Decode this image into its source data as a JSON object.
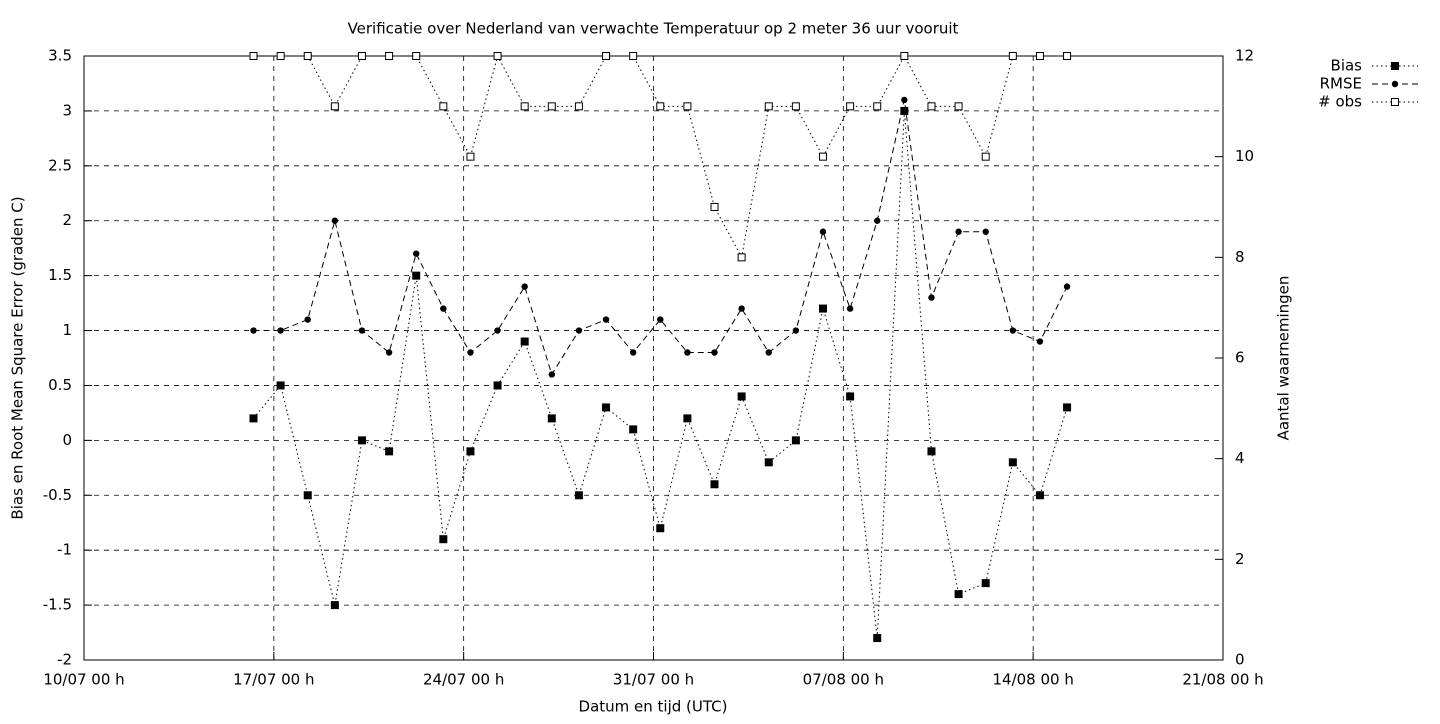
{
  "chart_data": {
    "type": "line",
    "title": "Verificatie over Nederland van verwachte Temperatuur op 2 meter 36 uur vooruit",
    "xlabel": "Datum en tijd (UTC)",
    "ylabel": "Bias en Root Mean Square Error (graden C)",
    "y2label": "Aantal waarnemingen",
    "x": [
      6.25,
      7.25,
      8.25,
      9.25,
      10.25,
      11.25,
      12.25,
      13.25,
      14.25,
      15.25,
      16.25,
      17.25,
      18.25,
      19.25,
      20.25,
      21.25,
      22.25,
      23.25,
      24.25,
      25.25,
      26.25,
      27.25,
      28.25,
      29.25,
      30.25,
      31.25,
      32.25,
      33.25,
      34.25,
      35.25,
      36.25
    ],
    "xlim": [
      0,
      42
    ],
    "xticks": [
      {
        "value": 0,
        "label": "10/07 00 h"
      },
      {
        "value": 7,
        "label": "17/07 00 h"
      },
      {
        "value": 14,
        "label": "24/07 00 h"
      },
      {
        "value": 21,
        "label": "31/07 00 h"
      },
      {
        "value": 28,
        "label": "07/08 00 h"
      },
      {
        "value": 35,
        "label": "14/08 00 h"
      },
      {
        "value": 42,
        "label": "21/08 00 h"
      }
    ],
    "ylim": [
      -2,
      3.5
    ],
    "yticks": [
      -2,
      -1.5,
      -1,
      -0.5,
      0,
      0.5,
      1,
      1.5,
      2,
      2.5,
      3,
      3.5
    ],
    "y2lim": [
      0,
      12
    ],
    "y2ticks": [
      0,
      2,
      4,
      6,
      8,
      10,
      12
    ],
    "grid": true,
    "legend": "top-right-outside",
    "series": [
      {
        "name": "Bias",
        "color": "#000000",
        "marker": "filled-square",
        "dash": "dotted",
        "values": [
          0.2,
          0.5,
          -0.5,
          -1.5,
          0,
          -0.1,
          1.5,
          -0.9,
          -0.1,
          0.5,
          0.9,
          0.2,
          -0.5,
          0.3,
          0.1,
          -0.8,
          0.2,
          -0.4,
          0.4,
          -0.2,
          0,
          1.2,
          0.4,
          -1.8,
          3.0,
          -0.1,
          -1.4,
          -1.3,
          -0.2,
          -0.5,
          0.3
        ]
      },
      {
        "name": "RMSE",
        "color": "#000000",
        "marker": "filled-circle",
        "dash": "dashed",
        "values": [
          1.0,
          1.0,
          1.1,
          2.0,
          1.0,
          0.8,
          1.7,
          1.2,
          0.8,
          1.0,
          1.4,
          0.6,
          1.0,
          1.1,
          0.8,
          1.1,
          0.8,
          0.8,
          1.2,
          0.8,
          1.0,
          1.9,
          1.2,
          2.0,
          3.1,
          1.3,
          1.9,
          1.9,
          1.0,
          0.9,
          1.4
        ]
      },
      {
        "name": "# obs",
        "color": "#000000",
        "marker": "open-square",
        "dash": "dotted",
        "axis": "y2",
        "values": [
          12,
          12,
          12,
          11,
          12,
          12,
          12,
          11,
          10,
          12,
          11,
          11,
          11,
          12,
          12,
          11,
          11,
          9,
          8,
          11,
          11,
          10,
          11,
          11,
          12,
          11,
          11,
          10,
          12,
          12,
          12
        ]
      }
    ]
  }
}
